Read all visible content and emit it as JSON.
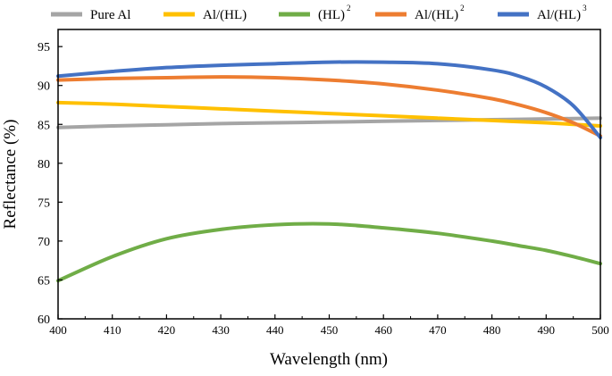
{
  "chart_data": {
    "type": "line",
    "xlabel": "Wavelength (nm)",
    "ylabel": "Reflectance (%)",
    "xlim": [
      400,
      500
    ],
    "ylim": [
      60,
      97.2
    ],
    "xticks": [
      400,
      410,
      420,
      430,
      440,
      450,
      460,
      470,
      480,
      490,
      500
    ],
    "yticks": [
      60,
      65,
      70,
      75,
      80,
      85,
      90,
      95
    ],
    "grid": false,
    "legend_position": "top",
    "x": [
      400,
      410,
      420,
      430,
      440,
      450,
      460,
      470,
      480,
      485,
      490,
      495,
      500
    ],
    "series": [
      {
        "name": "Pure Al",
        "sup": "",
        "color": "#a5a5a5",
        "values": [
          84.6,
          84.8,
          84.95,
          85.1,
          85.2,
          85.3,
          85.4,
          85.5,
          85.6,
          85.65,
          85.7,
          85.75,
          85.8
        ]
      },
      {
        "name": "Al/(HL)",
        "sup": "",
        "color": "#ffc000",
        "values": [
          87.8,
          87.6,
          87.3,
          87.0,
          86.7,
          86.4,
          86.1,
          85.8,
          85.5,
          85.35,
          85.2,
          85.0,
          84.8
        ]
      },
      {
        "name": "(HL)",
        "sup": "2",
        "color": "#70ad47",
        "values": [
          64.9,
          68.0,
          70.3,
          71.5,
          72.1,
          72.2,
          71.7,
          71.0,
          70.0,
          69.4,
          68.8,
          68.0,
          67.1
        ]
      },
      {
        "name": "Al/(HL)",
        "sup": "2",
        "color": "#ed7d31",
        "values": [
          90.7,
          90.9,
          91.0,
          91.1,
          91.0,
          90.7,
          90.2,
          89.4,
          88.3,
          87.5,
          86.5,
          85.2,
          83.5
        ]
      },
      {
        "name": "Al/(HL)",
        "sup": "3",
        "color": "#4472c4",
        "values": [
          91.2,
          91.8,
          92.3,
          92.6,
          92.8,
          93.0,
          93.0,
          92.8,
          92.0,
          91.2,
          89.8,
          87.4,
          83.3
        ]
      }
    ]
  }
}
